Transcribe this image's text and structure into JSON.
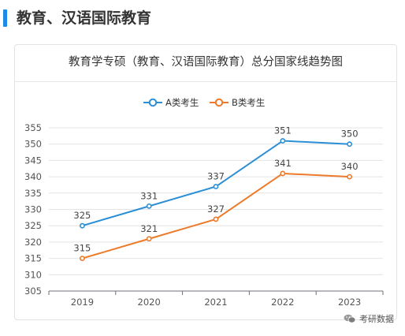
{
  "section": {
    "title": "教育、汉语国际教育",
    "accent_color": "#1a8be8"
  },
  "watermark": {
    "text": "考研数据"
  },
  "chart_data": {
    "type": "line",
    "title": "教育学专硕（教育、汉语国际教育）总分国家线趋势图",
    "categories": [
      "2019",
      "2020",
      "2021",
      "2022",
      "2023"
    ],
    "series": [
      {
        "name": "A类考生",
        "color": "#2b8fd6",
        "values": [
          325,
          331,
          337,
          351,
          350
        ]
      },
      {
        "name": "B类考生",
        "color": "#ec7a2a",
        "values": [
          315,
          321,
          327,
          341,
          340
        ]
      }
    ],
    "ylim": [
      305,
      355
    ],
    "yticks": [
      305,
      310,
      315,
      320,
      325,
      330,
      335,
      340,
      345,
      350,
      355
    ],
    "xlabel": "",
    "ylabel": "",
    "grid": true,
    "legend_position": "top-center",
    "data_labels": true
  }
}
